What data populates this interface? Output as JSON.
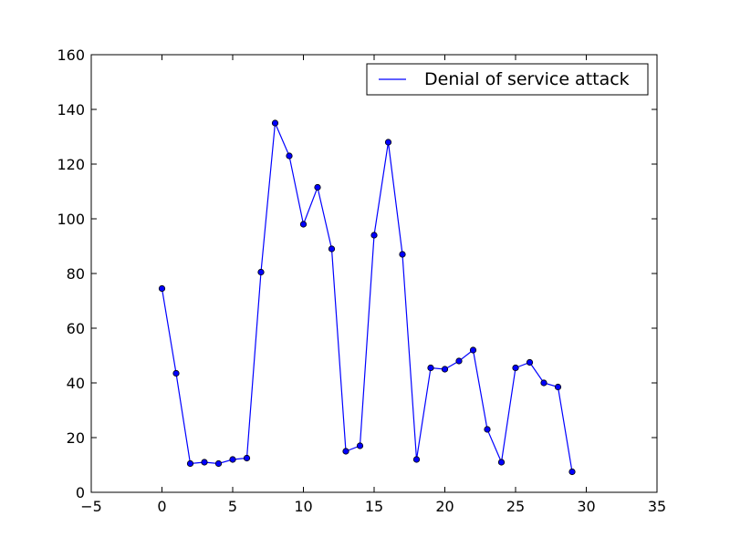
{
  "chart_data": {
    "type": "line",
    "title": "",
    "xlabel": "",
    "ylabel": "",
    "xlim": [
      -5,
      35
    ],
    "ylim": [
      0,
      160
    ],
    "xticks": [
      -5,
      0,
      5,
      10,
      15,
      20,
      25,
      30,
      35
    ],
    "yticks": [
      0,
      20,
      40,
      60,
      80,
      100,
      120,
      140,
      160
    ],
    "grid": false,
    "legend": {
      "placement": "top-right"
    },
    "colors": {
      "line": "#0000ff",
      "marker_fill": "#0000ff",
      "marker_edge": "#000000"
    },
    "series": [
      {
        "name": "Denial of service attack",
        "x": [
          0,
          1,
          2,
          3,
          4,
          5,
          6,
          7,
          8,
          9,
          10,
          11,
          12,
          13,
          14,
          15,
          16,
          17,
          18,
          19,
          20,
          21,
          22,
          23,
          24,
          25,
          26,
          27,
          28,
          29
        ],
        "y": [
          74.5,
          43.5,
          10.5,
          11,
          10.5,
          12,
          12.5,
          80.5,
          135,
          123,
          98,
          111.5,
          89,
          15,
          17,
          94,
          128,
          87,
          12,
          45.5,
          45,
          48,
          52,
          23,
          11,
          45.5,
          47.5,
          40,
          38.5,
          7.5
        ]
      }
    ]
  }
}
